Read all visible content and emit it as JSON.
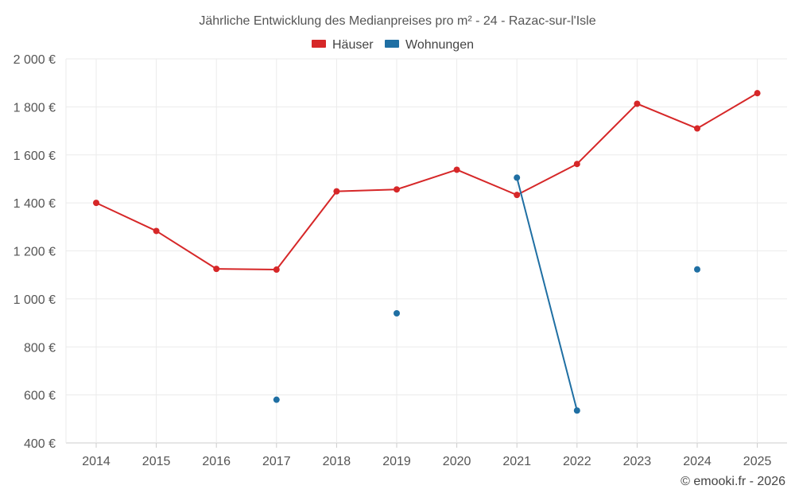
{
  "chart_data": {
    "type": "line",
    "title": "Jährliche Entwicklung des Medianpreises pro m² - 24 - Razac-sur-l'Isle",
    "categories": [
      "2014",
      "2015",
      "2016",
      "2017",
      "2018",
      "2019",
      "2020",
      "2021",
      "2022",
      "2023",
      "2024",
      "2025"
    ],
    "ylim": [
      400,
      2000
    ],
    "yticks": [
      400,
      600,
      800,
      1000,
      1200,
      1400,
      1600,
      1800,
      2000
    ],
    "ytick_labels": [
      "400 €",
      "600 €",
      "800 €",
      "1 000 €",
      "1 200 €",
      "1 400 €",
      "1 600 €",
      "1 800 €",
      "2 000 €"
    ],
    "grid": true,
    "legend_position": "top-center",
    "series": [
      {
        "name": "Häuser",
        "color": "#d62728",
        "values": [
          1400,
          1283,
          1125,
          1122,
          1448,
          1456,
          1538,
          1433,
          1562,
          1813,
          1710,
          1857
        ]
      },
      {
        "name": "Wohnungen",
        "color": "#1f6fa3",
        "values": [
          null,
          null,
          null,
          580,
          null,
          940,
          null,
          1505,
          535,
          null,
          1123,
          null
        ]
      }
    ]
  },
  "copyright": "© emooki.fr - 2026"
}
